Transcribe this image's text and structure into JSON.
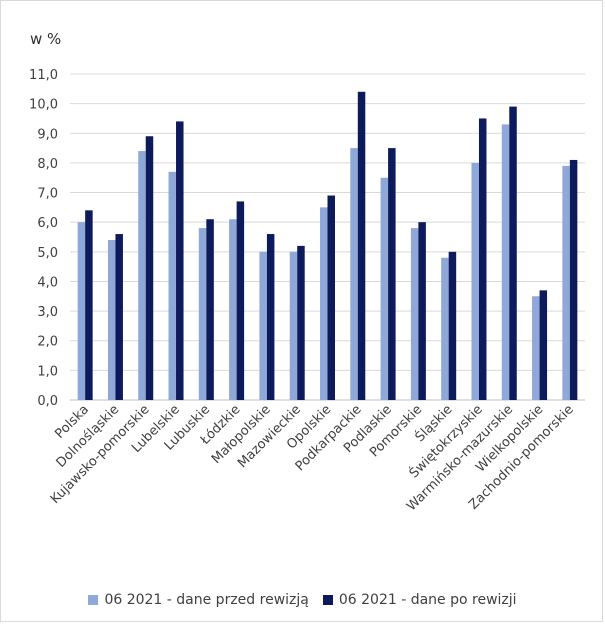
{
  "chart_data": {
    "type": "bar",
    "unit_label": "w %",
    "ylim": [
      0,
      11
    ],
    "yticks": [
      "0,0",
      "1,0",
      "2,0",
      "3,0",
      "4,0",
      "5,0",
      "6,0",
      "7,0",
      "8,0",
      "9,0",
      "10,0",
      "11,0"
    ],
    "grid": true,
    "legend_position": "bottom",
    "categories": [
      "Polska",
      "Dolnośląskie",
      "Kujawsko-pomorskie",
      "Lubelskie",
      "Lubuskie",
      "Łódzkie",
      "Małopolskie",
      "Mazowieckie",
      "Opolskie",
      "Podkarpackie",
      "Podlaskie",
      "Pomorskie",
      "Śląskie",
      "Świętokrzyskie",
      "Warmińsko-mazurskie",
      "Wielkopolskie",
      "Zachodnio-pomorskie"
    ],
    "series": [
      {
        "name": "06 2021 - dane przed rewizją",
        "color": "#8fa8d8",
        "values": [
          6.0,
          5.4,
          8.4,
          7.7,
          5.8,
          6.1,
          5.0,
          5.0,
          6.5,
          8.5,
          7.5,
          5.8,
          4.8,
          8.0,
          9.3,
          3.5,
          7.9
        ]
      },
      {
        "name": "06 2021 - dane po rewizji",
        "color": "#0d1b5c",
        "values": [
          6.4,
          5.6,
          8.9,
          9.4,
          6.1,
          6.7,
          5.6,
          5.2,
          6.9,
          10.4,
          8.5,
          6.0,
          5.0,
          9.5,
          9.9,
          3.7,
          8.1
        ]
      }
    ]
  }
}
